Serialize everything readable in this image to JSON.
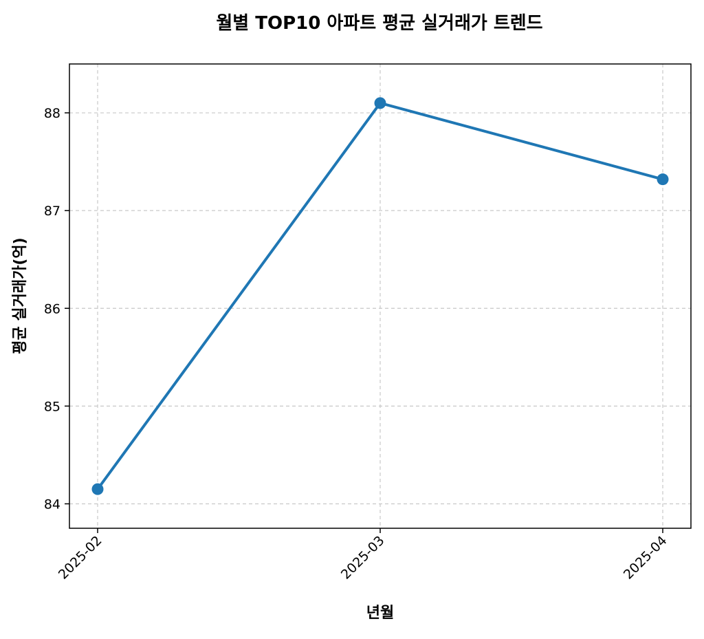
{
  "chart_data": {
    "type": "line",
    "title": "월별 TOP10 아파트 평균 실거래가 트렌드",
    "xlabel": "년월",
    "ylabel": "평균 실거래가(억)",
    "categories": [
      "2025-02",
      "2025-03",
      "2025-04"
    ],
    "series": [
      {
        "values": [
          84.15,
          88.1,
          87.32
        ]
      }
    ],
    "ylim": [
      83.75,
      88.5
    ],
    "yticks": [
      "84",
      "85",
      "86",
      "87",
      "88"
    ],
    "grid": true,
    "marker": "circle",
    "colors": {
      "line": "#1f77b4",
      "grid": "#c8c8c8",
      "axis": "#000000"
    }
  }
}
